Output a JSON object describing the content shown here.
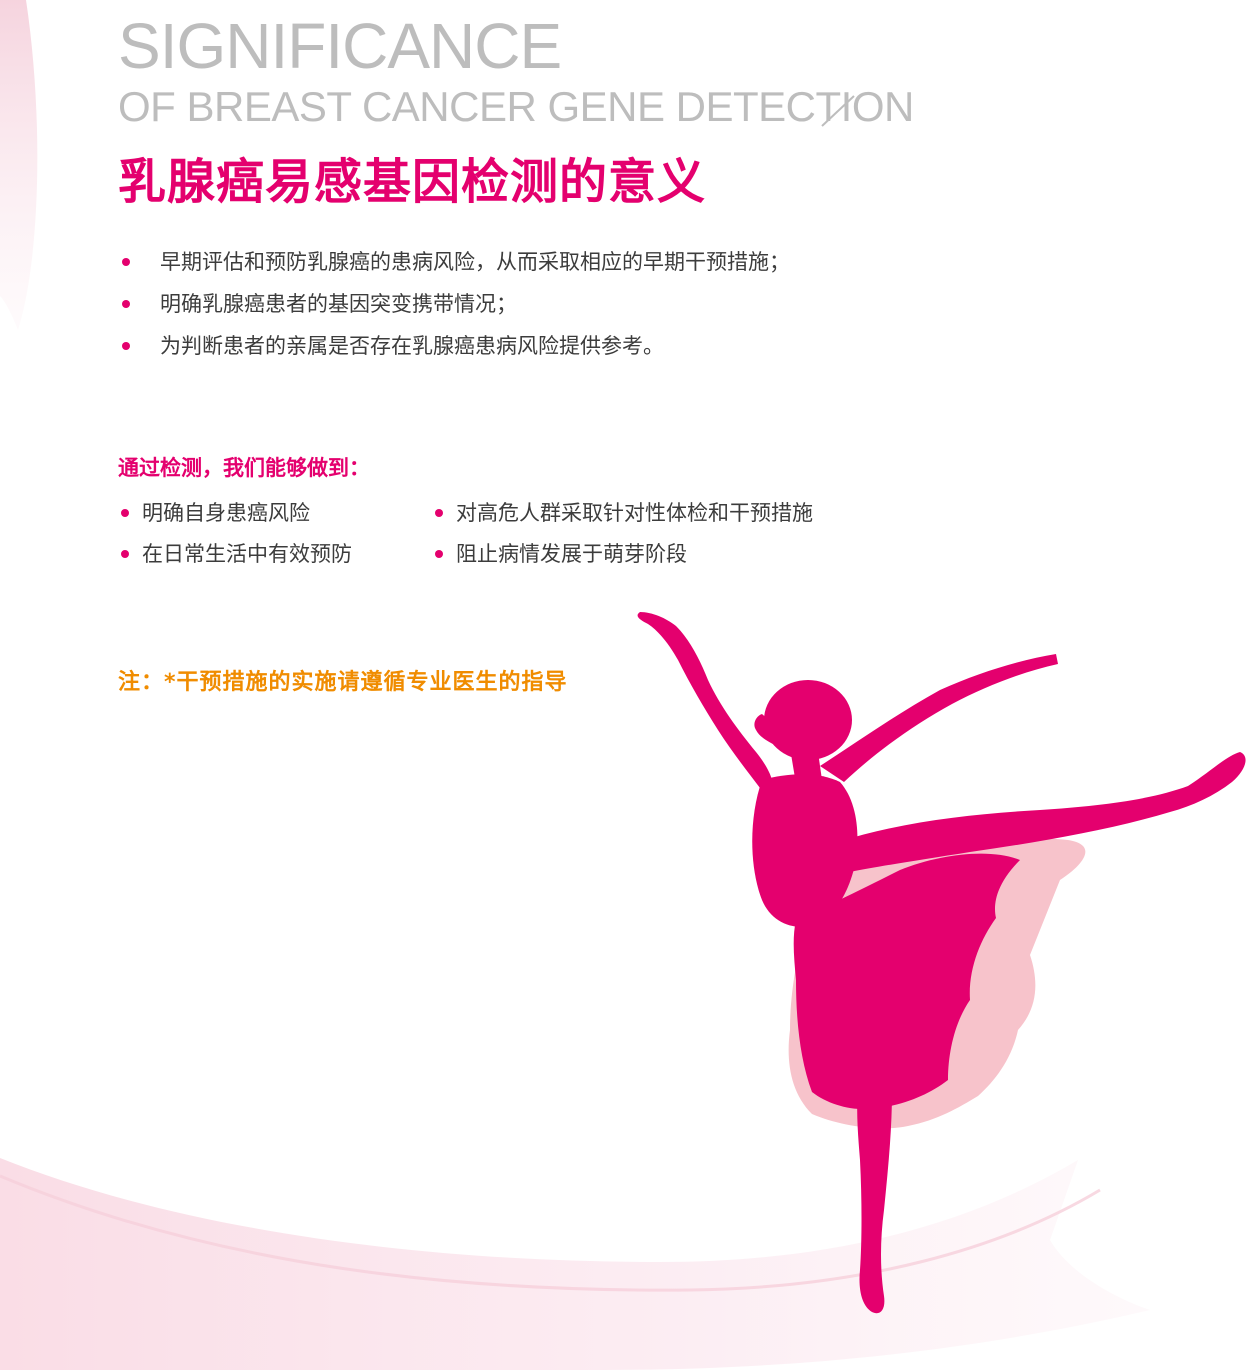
{
  "header": {
    "title_en_line1": "SIGNIFICANCE",
    "title_en_line2": "OF BREAST CANCER GENE DETECTION",
    "title_cn": "乳腺癌易感基因检测的意义"
  },
  "significance_points": [
    "早期评估和预防乳腺癌的患病风险，从而采取相应的早期干预措施；",
    "明确乳腺癌患者的基因突变携带情况；",
    "为判断患者的亲属是否存在乳腺癌患病风险提供参考。"
  ],
  "benefits": {
    "heading": "通过检测，我们能够做到：",
    "left_column": [
      "明确自身患癌风险",
      "在日常生活中有效预防"
    ],
    "right_column": [
      "对高危人群采取针对性体检和干预措施",
      "阻止病情发展于萌芽阶段"
    ]
  },
  "note": "注：*干预措施的实施请遵循专业医生的指导",
  "colors": {
    "accent_pink": "#e4006e",
    "light_pink": "#f7c3cb",
    "note_orange": "#f08c00",
    "title_gray": "#bdbdbd",
    "body_text": "#3c3c3c"
  },
  "decorations": {
    "illustration": "ballerina-silhouette",
    "background_swoosh": "pink-ribbon-curve"
  }
}
